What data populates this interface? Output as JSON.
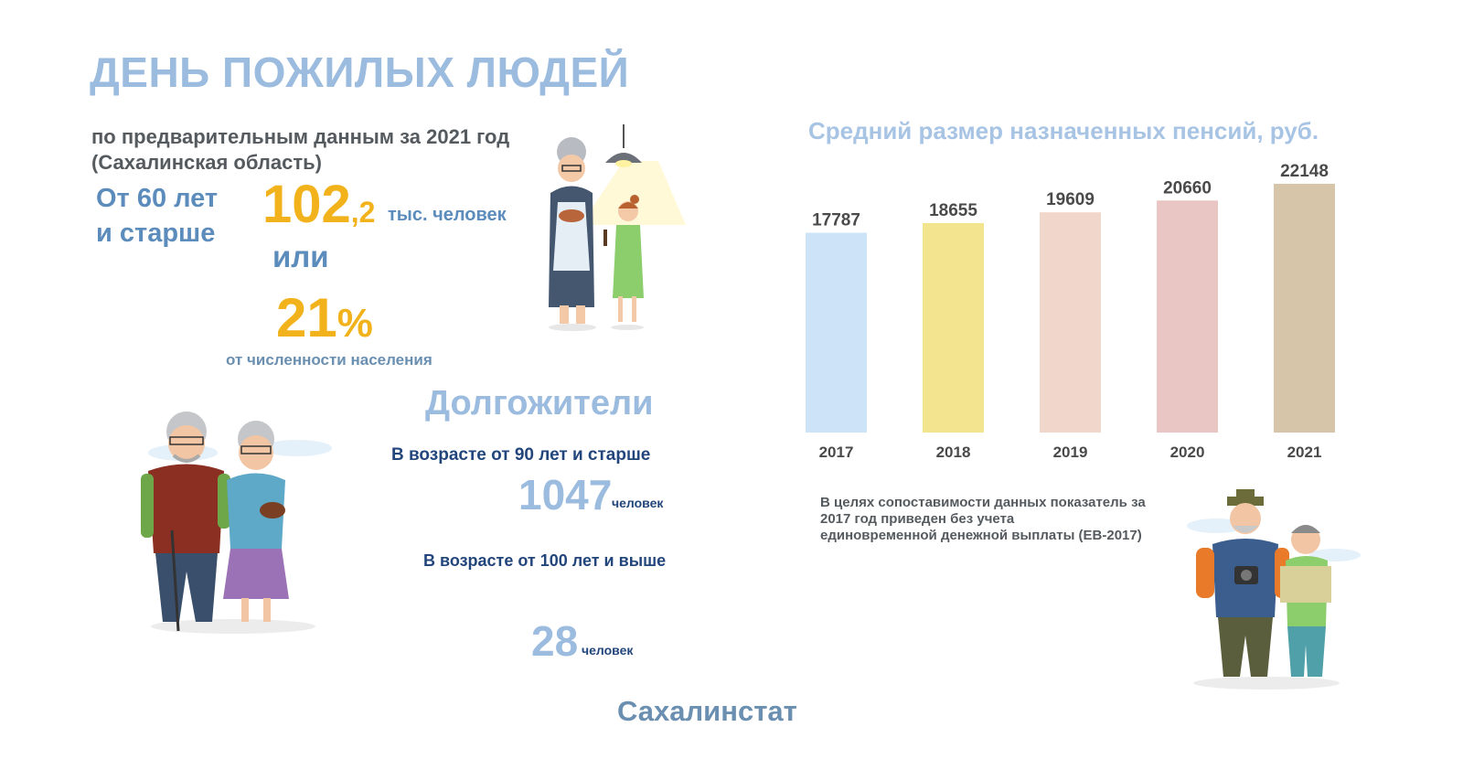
{
  "header": {
    "title": "ДЕНЬ ПОЖИЛЫХ ЛЮДЕЙ",
    "subtitle_line1": "по предварительным данным за 2021 год",
    "subtitle_line2": "(Сахалинская область)"
  },
  "elderly": {
    "age_line1": "От 60 лет",
    "age_line2": "и старше",
    "count_int": "102",
    "count_dec": ",2",
    "count_unit": "тыс. человек",
    "or_text": "или",
    "share_value": "21",
    "share_unit": "%",
    "share_caption": "от численности населения"
  },
  "longevity": {
    "title": "Долгожители",
    "age90_label": "В возрасте от 90 лет и старше",
    "age90_value": "1047",
    "age90_unit": "человек",
    "age100_label": "В возрасте от 100 лет и выше",
    "age100_value": "28",
    "age100_unit": "человек"
  },
  "chart_data": {
    "type": "bar",
    "title": "Средний размер назначенных пенсий, руб.",
    "categories": [
      "2017",
      "2018",
      "2019",
      "2020",
      "2021"
    ],
    "values": [
      17787,
      18655,
      19609,
      20660,
      22148
    ],
    "colors": [
      "#cde3f7",
      "#f3e48f",
      "#f1d6cb",
      "#e9c6c4",
      "#d7c5aa"
    ],
    "grid": false,
    "legend": "none"
  },
  "note": {
    "line1": "В целях сопоставимости данных показатель за",
    "line2": "2017 год приведен без учета",
    "line3": "единовременной денежной выплаты (ЕВ-2017)"
  },
  "footer": {
    "source": "Сахалинстат"
  }
}
